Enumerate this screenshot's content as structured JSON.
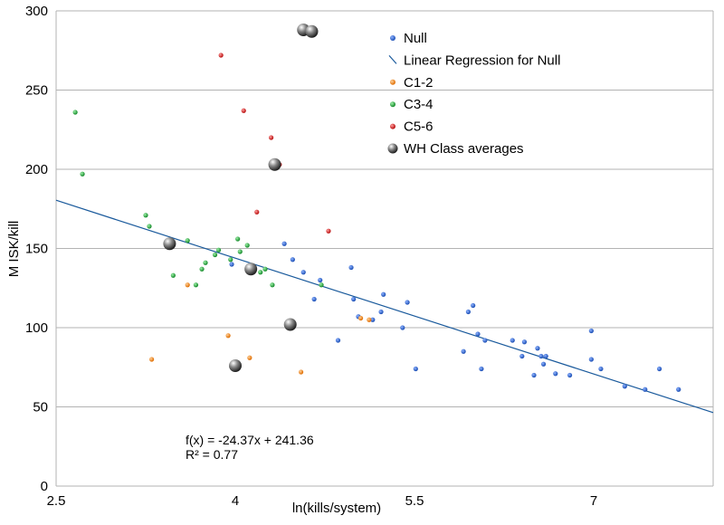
{
  "chart_data": {
    "type": "scatter",
    "xlabel": "ln(kills/system)",
    "ylabel": "M ISK/kill",
    "xlim": [
      2.5,
      8.0
    ],
    "ylim": [
      0,
      300
    ],
    "x_ticks": [
      2.5,
      4,
      5.5,
      7
    ],
    "x_tick_labels": [
      "2.5",
      "4",
      "5.5",
      "7"
    ],
    "y_ticks": [
      0,
      50,
      100,
      150,
      200,
      250,
      300
    ],
    "y_tick_labels": [
      "0",
      "50",
      "100",
      "150",
      "200",
      "250",
      "300"
    ],
    "grid": "horizontal",
    "legend_position": "top-right",
    "colors": {
      "Null": "#1c4fb5",
      "Linear Regression for Null": "#1a5a9c",
      "C1-2": "#f07e12",
      "C3-4": "#1ea33a",
      "C5-6": "#d21c1c",
      "WH Class averages": "#3a3a3a"
    },
    "legend": [
      "Null",
      "Linear Regression for Null",
      "C1-2",
      "C3-4",
      "C5-6",
      "WH Class averages"
    ],
    "series": [
      {
        "name": "Null",
        "x": [
          3.97,
          4.41,
          4.48,
          4.57,
          4.66,
          4.71,
          4.86,
          4.97,
          4.99,
          5.03,
          5.15,
          5.22,
          5.24,
          5.4,
          5.44,
          5.51,
          5.91,
          5.95,
          5.99,
          6.03,
          6.06,
          6.09,
          6.32,
          6.4,
          6.42,
          6.5,
          6.53,
          6.56,
          6.58,
          6.6,
          6.68,
          6.8,
          6.98,
          6.98,
          7.06,
          7.26,
          7.43,
          7.55,
          7.71
        ],
        "y": [
          140,
          153,
          143,
          135,
          118,
          130,
          92,
          138,
          118,
          107,
          105,
          110,
          121,
          100,
          116,
          74,
          85,
          110,
          114,
          96,
          74,
          92,
          92,
          82,
          91,
          70,
          87,
          82,
          77,
          82,
          71,
          70,
          98,
          80,
          74,
          63,
          61,
          74,
          61
        ]
      },
      {
        "name": "C1-2",
        "x": [
          3.3,
          3.6,
          3.94,
          4.12,
          4.55,
          5.05,
          5.12
        ],
        "y": [
          80,
          127,
          95,
          81,
          72,
          106,
          105
        ]
      },
      {
        "name": "C3-4",
        "x": [
          2.66,
          2.72,
          3.25,
          3.28,
          3.48,
          3.6,
          3.67,
          3.72,
          3.75,
          3.83,
          3.86,
          3.96,
          4.02,
          4.04,
          4.1,
          4.15,
          4.21,
          4.25,
          4.31,
          4.72
        ],
        "y": [
          236,
          197,
          171,
          164,
          133,
          155,
          127,
          137,
          141,
          146,
          149,
          143,
          156,
          148,
          152,
          138,
          135,
          137,
          127,
          127
        ]
      },
      {
        "name": "C5-6",
        "x": [
          3.88,
          4.07,
          4.18,
          4.3,
          4.37,
          4.78
        ],
        "y": [
          272,
          237,
          173,
          220,
          203,
          161
        ]
      },
      {
        "name": "WH Class averages",
        "x": [
          3.45,
          4.0,
          4.13,
          4.33,
          4.46,
          4.57,
          4.64
        ],
        "y": [
          153,
          76,
          137,
          203,
          102,
          288,
          287
        ],
        "note": "approximate positions of averaged markers"
      }
    ],
    "regression": {
      "series": "Linear Regression for Null",
      "slope": -24.37,
      "intercept": 241.36,
      "x_range": [
        2.5,
        8.0
      ]
    },
    "annotations": [
      {
        "text": "f(x) = -24.37x + 241.36"
      },
      {
        "text": "R² = 0.77"
      }
    ]
  }
}
